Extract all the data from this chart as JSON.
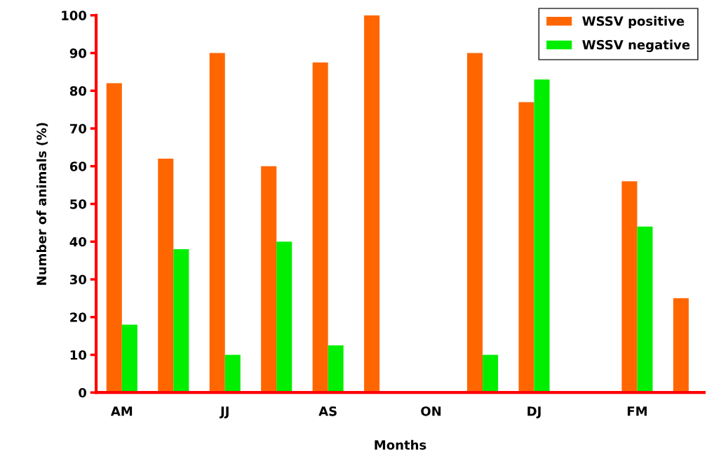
{
  "chart_data": {
    "type": "bar",
    "xlabel": "Months",
    "ylabel": "Number of animals (%)",
    "categories": [
      "AM",
      null,
      "JJ",
      null,
      "AS",
      null,
      "ON",
      null,
      "DJ",
      null,
      "FM",
      null
    ],
    "series": [
      {
        "name": "WSSV positive",
        "color": "#ff6600",
        "values": [
          82,
          62,
          90,
          60,
          87.5,
          100,
          null,
          90,
          77,
          null,
          56,
          25
        ]
      },
      {
        "name": "WSSV negative",
        "color": "#00ee00",
        "values": [
          18,
          38,
          10,
          40,
          12.5,
          null,
          null,
          10,
          83,
          null,
          44,
          null
        ]
      }
    ],
    "ylim": [
      0,
      100
    ],
    "yticks": [
      0,
      10,
      20,
      30,
      40,
      50,
      60,
      70,
      80,
      90,
      100
    ],
    "grid": false,
    "legend": "top right"
  }
}
